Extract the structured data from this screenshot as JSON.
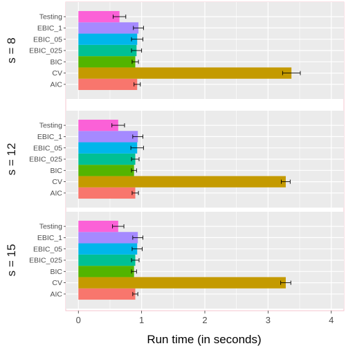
{
  "chart_data": {
    "type": "bar",
    "orientation": "horizontal",
    "xlabel": "Run time (in seconds)",
    "xlim": [
      -0.2,
      4.2
    ],
    "x_ticks": [
      0,
      1,
      2,
      3,
      4
    ],
    "grid": true,
    "legend": "none",
    "categories": [
      "AIC",
      "CV",
      "BIC",
      "EBIC_025",
      "EBIC_05",
      "EBIC_1",
      "Testing"
    ],
    "colors": {
      "AIC": "#f8766d",
      "CV": "#c49a00",
      "BIC": "#53b400",
      "EBIC_025": "#00c094",
      "EBIC_05": "#00b6eb",
      "EBIC_1": "#a58aff",
      "Testing": "#fb61d7"
    },
    "panels": [
      {
        "label": "s = 8",
        "values": [
          0.93,
          3.37,
          0.9,
          0.92,
          0.93,
          0.95,
          0.65
        ],
        "errors": [
          0.05,
          0.14,
          0.05,
          0.08,
          0.09,
          0.08,
          0.1
        ]
      },
      {
        "label": "s = 12",
        "values": [
          0.9,
          3.28,
          0.88,
          0.9,
          0.93,
          0.94,
          0.63
        ],
        "errors": [
          0.05,
          0.07,
          0.04,
          0.06,
          0.1,
          0.08,
          0.1
        ]
      },
      {
        "label": "s = 15",
        "values": [
          0.9,
          3.28,
          0.88,
          0.9,
          0.93,
          0.94,
          0.63
        ],
        "errors": [
          0.04,
          0.08,
          0.04,
          0.06,
          0.08,
          0.08,
          0.09
        ]
      }
    ]
  }
}
